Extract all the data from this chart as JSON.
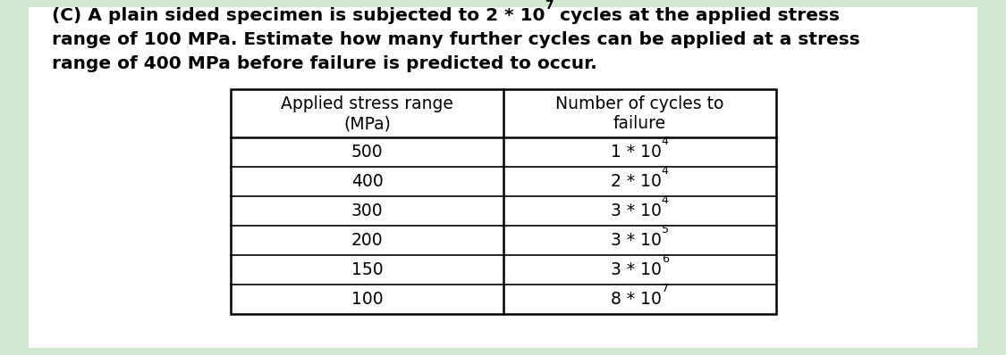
{
  "col1_header1": "Applied stress range",
  "col1_header2": "(MPa)",
  "col2_header1": "Number of cycles to",
  "col2_header2": "failure",
  "row_cycles": [
    [
      "500",
      "1",
      "4"
    ],
    [
      "400",
      "2",
      "4"
    ],
    [
      "300",
      "3",
      "4"
    ],
    [
      "200",
      "3",
      "5"
    ],
    [
      "150",
      "3",
      "6"
    ],
    [
      "100",
      "8",
      "7"
    ]
  ],
  "background_color": "#d0e8d0",
  "text_color": "#000000",
  "font_size_title": 14.5,
  "font_size_table": 13.5
}
